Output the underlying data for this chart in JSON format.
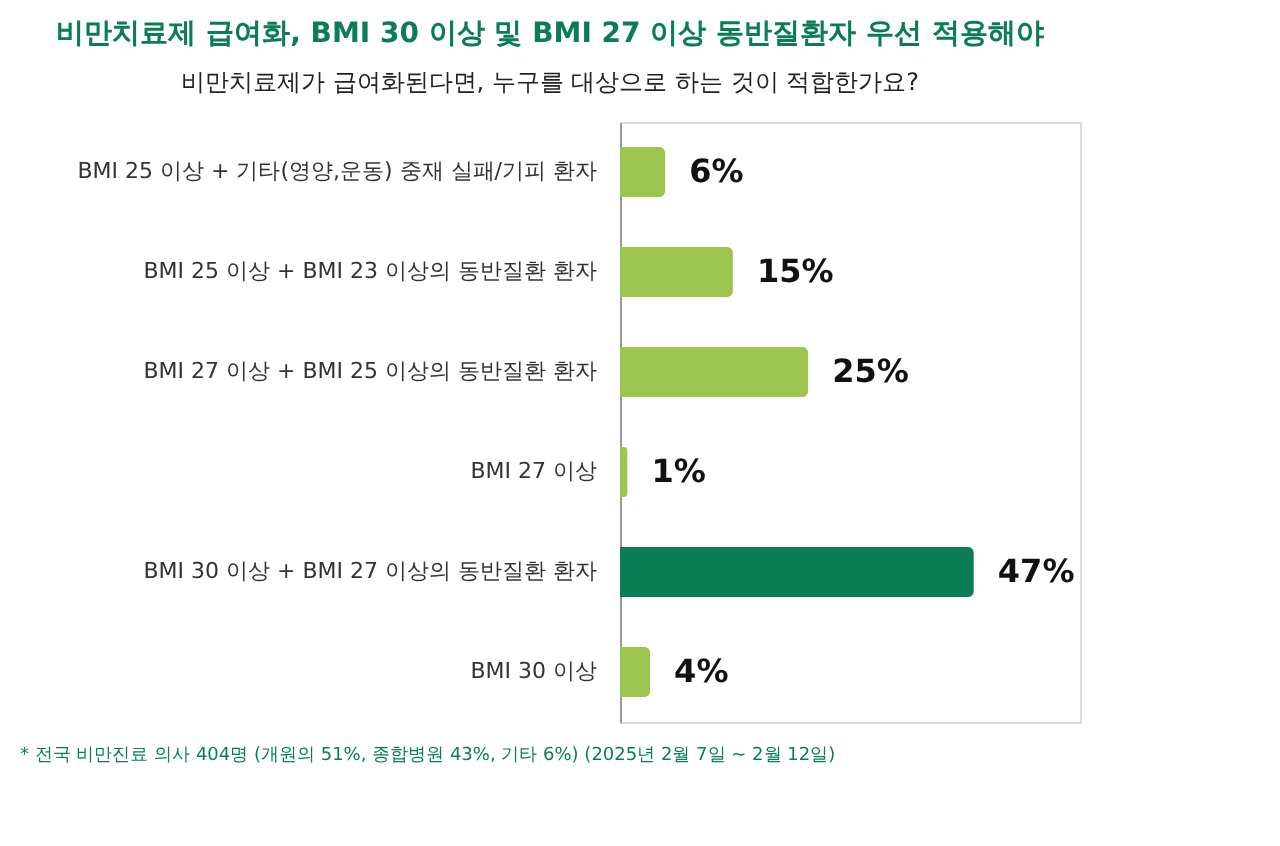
{
  "chart_data": {
    "type": "bar",
    "orientation": "horizontal",
    "title": "비만치료제 급여화, BMI 30 이상 및 BMI 27 이상 동반질환자 우선 적용해야",
    "subtitle": "비만치료제가 급여화된다면, 누구를 대상으로 하는 것이 적합한가요?",
    "categories": [
      "BMI 25 이상 + 기타(영양,운동) 중재 실패/기피 환자",
      "BMI 25 이상 + BMI 23 이상의 동반질환 환자",
      "BMI 27 이상 + BMI 25 이상의 동반질환 환자",
      "BMI 27 이상",
      "BMI 30 이상 + BMI 27 이상의 동반질환 환자",
      "BMI 30 이상"
    ],
    "values": [
      6,
      15,
      25,
      1,
      47,
      4
    ],
    "value_labels": [
      "6%",
      "15%",
      "25%",
      "1%",
      "47%",
      "4%"
    ],
    "colors": [
      "#9bc54e",
      "#9bc54e",
      "#9bc54e",
      "#9bc54e",
      "#0b7d55",
      "#9bc54e"
    ],
    "annotations": [
      "* 전국 비만진료 의사 404명 (개원의 51%, 종합병원 43%, 기타 6%) (2025년 2월 7일 ~ 2월 12일)"
    ],
    "grid": false
  }
}
